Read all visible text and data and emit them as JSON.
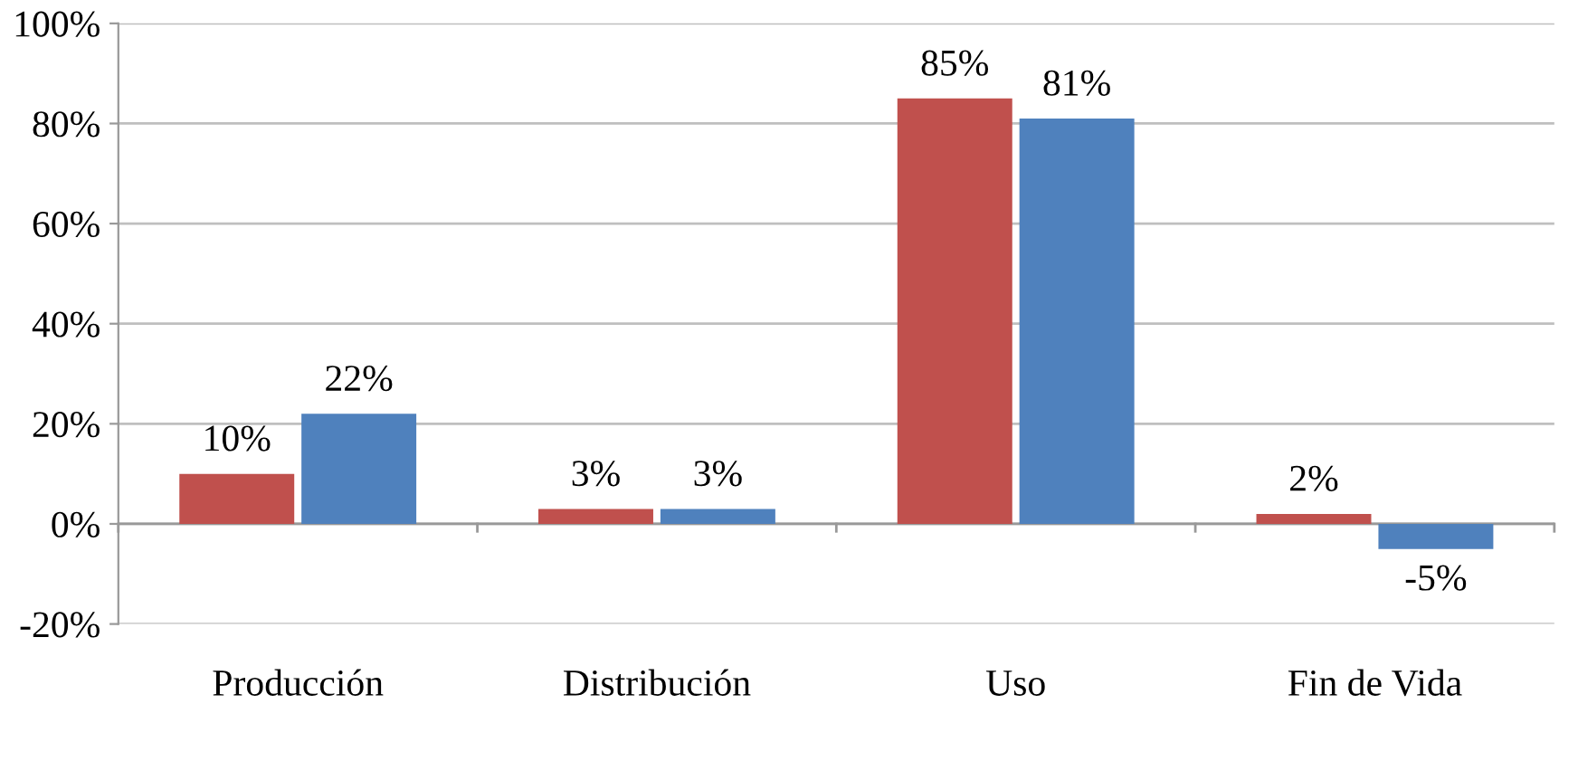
{
  "chart_data": {
    "type": "bar",
    "categories": [
      "Producción",
      "Distribución",
      "Uso",
      "Fin de Vida"
    ],
    "series": [
      {
        "color": "#c0504d",
        "values": [
          10,
          3,
          85,
          2
        ],
        "value_labels": [
          "10%",
          "3%",
          "85%",
          "2%"
        ]
      },
      {
        "color": "#4f81bd",
        "values": [
          22,
          3,
          81,
          -5
        ],
        "value_labels": [
          "22%",
          "3%",
          "81%",
          "-5%"
        ]
      }
    ],
    "ylim": [
      -20,
      100
    ],
    "yticks": [
      {
        "value": -20,
        "label": "-20%"
      },
      {
        "value": 0,
        "label": "0%"
      },
      {
        "value": 20,
        "label": "20%"
      },
      {
        "value": 40,
        "label": "40%"
      },
      {
        "value": 60,
        "label": "60%"
      },
      {
        "value": 80,
        "label": "80%"
      },
      {
        "value": 100,
        "label": "100%"
      }
    ],
    "grid": "y"
  }
}
